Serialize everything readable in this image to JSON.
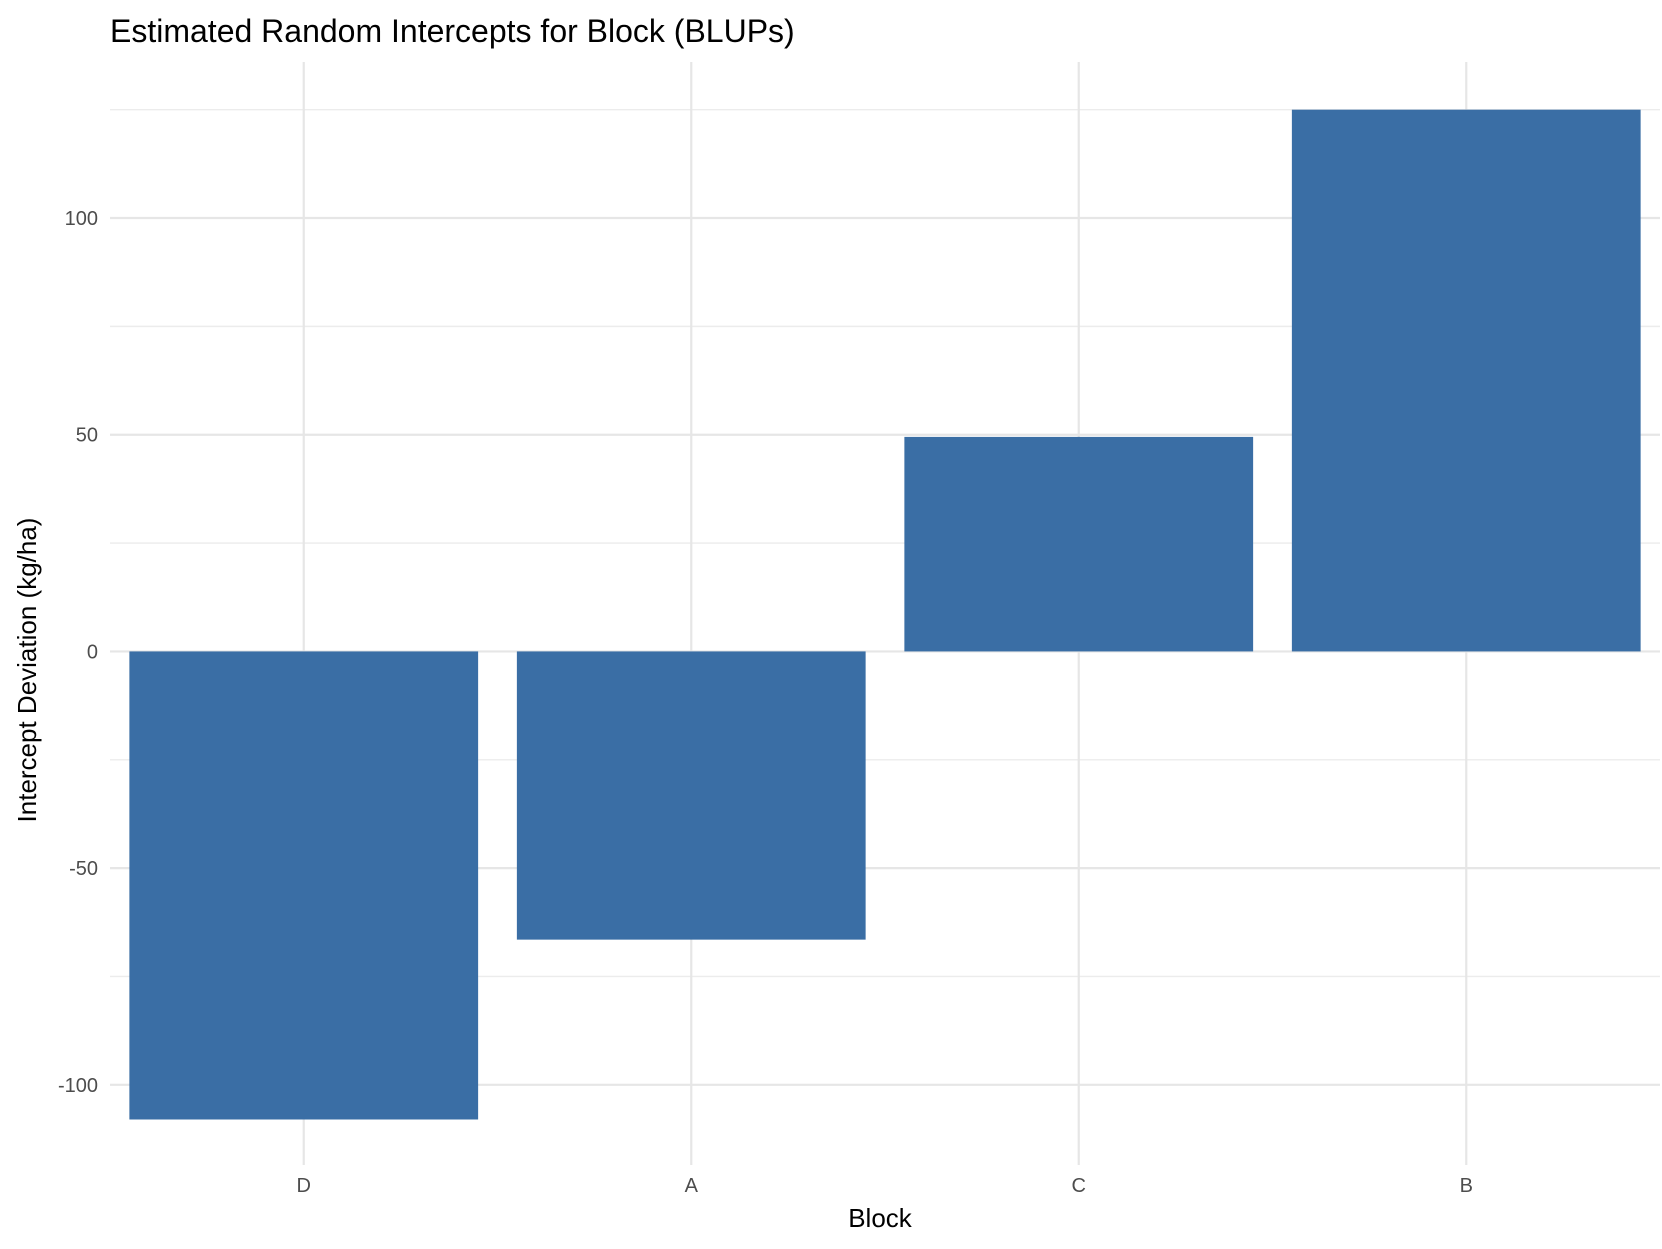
{
  "chart_data": {
    "type": "bar",
    "title": "Estimated Random Intercepts for Block (BLUPs)",
    "xlabel": "Block",
    "ylabel": "Intercept Deviation (kg/ha)",
    "categories": [
      "D",
      "A",
      "C",
      "B"
    ],
    "values": [
      -108,
      -66.5,
      49.5,
      125
    ],
    "ylim": [
      -118.5,
      136
    ],
    "yticks": [
      -100,
      -50,
      0,
      50,
      100
    ],
    "ytick_labels": [
      "-100",
      "-50",
      "0",
      "50",
      "100"
    ],
    "grid": true,
    "legend": "none",
    "bar_color": "#3a6ea5"
  }
}
